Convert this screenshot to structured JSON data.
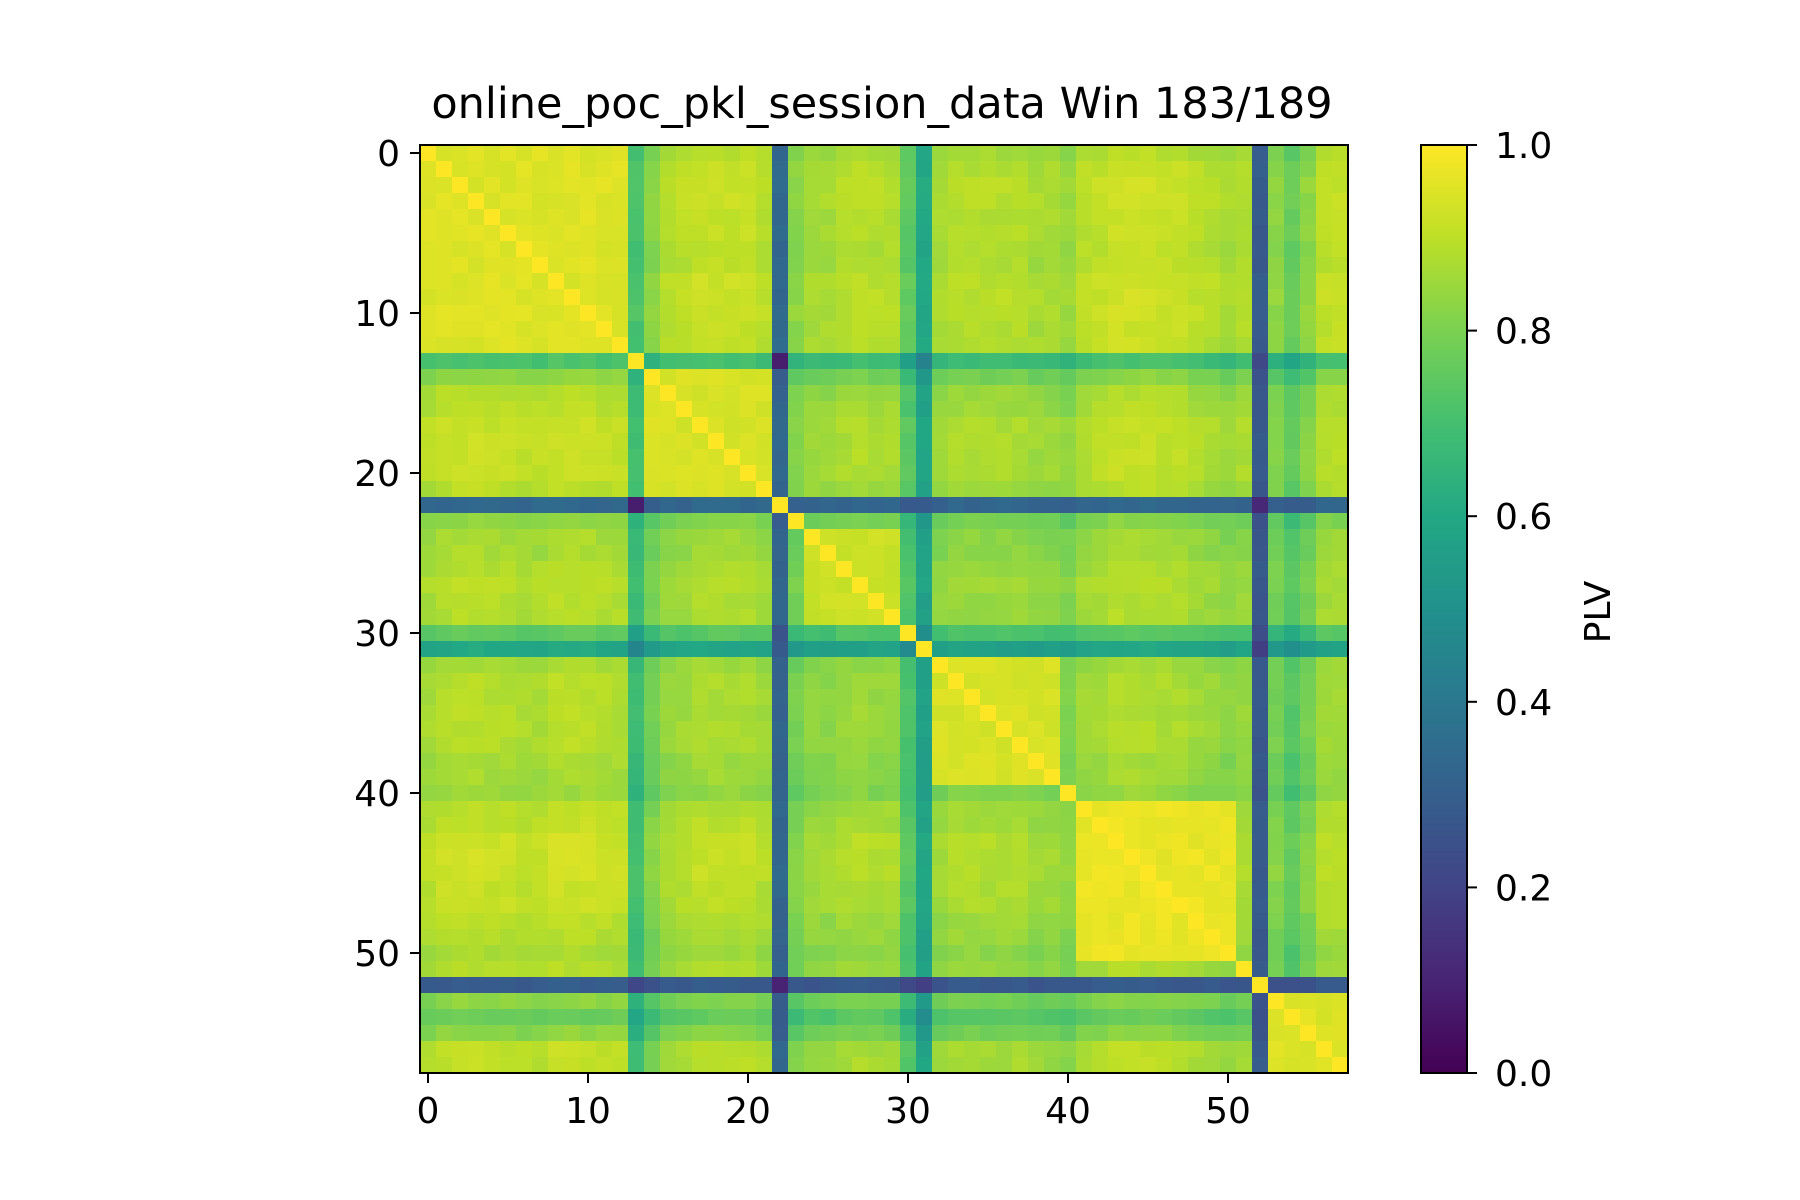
{
  "chart_data": {
    "type": "heatmap",
    "title": "online_poc_pkl_session_data Win 183/189",
    "matrix_size": 58,
    "xticks": [
      "0",
      "10",
      "20",
      "30",
      "40",
      "50"
    ],
    "yticks": [
      "0",
      "10",
      "20",
      "30",
      "40",
      "50"
    ],
    "xlim": [
      -0.5,
      57.5
    ],
    "ylim": [
      -0.5,
      57.5
    ],
    "colormap": "viridis",
    "colorbar": {
      "label": "PLV",
      "range": [
        0.0,
        1.0
      ],
      "ticks": [
        "0.0",
        "0.2",
        "0.4",
        "0.6",
        "0.8",
        "1.0"
      ]
    },
    "diagonal_value": 1.0,
    "channel_levels": [
      0.94,
      0.96,
      0.97,
      0.97,
      0.96,
      0.96,
      0.95,
      0.95,
      0.97,
      0.97,
      0.97,
      0.96,
      0.96,
      0.74,
      0.86,
      0.92,
      0.93,
      0.95,
      0.95,
      0.95,
      0.95,
      0.93,
      0.35,
      0.86,
      0.9,
      0.9,
      0.92,
      0.93,
      0.92,
      0.92,
      0.78,
      0.62,
      0.9,
      0.92,
      0.92,
      0.92,
      0.92,
      0.92,
      0.9,
      0.9,
      0.88,
      0.93,
      0.94,
      0.96,
      0.96,
      0.96,
      0.95,
      0.95,
      0.93,
      0.92,
      0.9,
      0.92,
      0.3,
      0.86,
      0.8,
      0.86,
      0.94,
      0.94
    ],
    "blocks": [
      {
        "range": [
          0,
          12
        ],
        "value": 0.95
      },
      {
        "range": [
          14,
          21
        ],
        "value": 0.94
      },
      {
        "range": [
          24,
          29
        ],
        "value": 0.92
      },
      {
        "range": [
          32,
          39
        ],
        "value": 0.94
      },
      {
        "range": [
          41,
          50
        ],
        "value": 0.97
      },
      {
        "range": [
          53,
          57
        ],
        "value": 0.95
      }
    ],
    "notable_cells": [
      {
        "row": 13,
        "col": 22,
        "value": 0.08
      },
      {
        "row": 22,
        "col": 13,
        "value": 0.08
      },
      {
        "row": 22,
        "col": 31,
        "value": 0.28
      },
      {
        "row": 31,
        "col": 22,
        "value": 0.28
      }
    ]
  }
}
